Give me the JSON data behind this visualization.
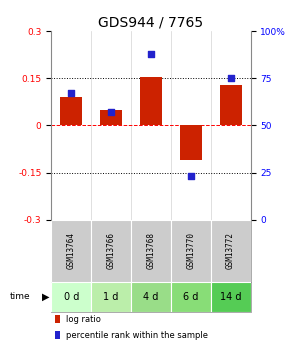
{
  "title": "GDS944 / 7765",
  "samples": [
    "GSM13764",
    "GSM13766",
    "GSM13768",
    "GSM13770",
    "GSM13772"
  ],
  "time_labels": [
    "0 d",
    "1 d",
    "4 d",
    "6 d",
    "14 d"
  ],
  "log_ratio": [
    0.09,
    0.05,
    0.155,
    -0.11,
    0.13
  ],
  "percentile_rank": [
    67,
    57,
    88,
    23,
    75
  ],
  "bar_color": "#cc2200",
  "dot_color": "#2222cc",
  "ylim_left": [
    -0.3,
    0.3
  ],
  "ylim_right": [
    0,
    100
  ],
  "yticks_left": [
    -0.3,
    -0.15,
    0,
    0.15,
    0.3
  ],
  "yticks_right": [
    0,
    25,
    50,
    75,
    100
  ],
  "hlines": [
    -0.15,
    0.0,
    0.15
  ],
  "hlines_styles": [
    "dotted",
    "dashed",
    "dotted"
  ],
  "hlines_colors": [
    "black",
    "red",
    "black"
  ],
  "sample_bg_color": "#cccccc",
  "time_bg_colors": [
    "#ccffcc",
    "#bbeeaa",
    "#99dd88",
    "#88dd77",
    "#55cc55"
  ],
  "legend_labels": [
    "log ratio",
    "percentile rank within the sample"
  ],
  "legend_colors": [
    "#cc2200",
    "#2222cc"
  ],
  "title_fontsize": 10,
  "tick_fontsize": 6.5,
  "bar_width": 0.55
}
